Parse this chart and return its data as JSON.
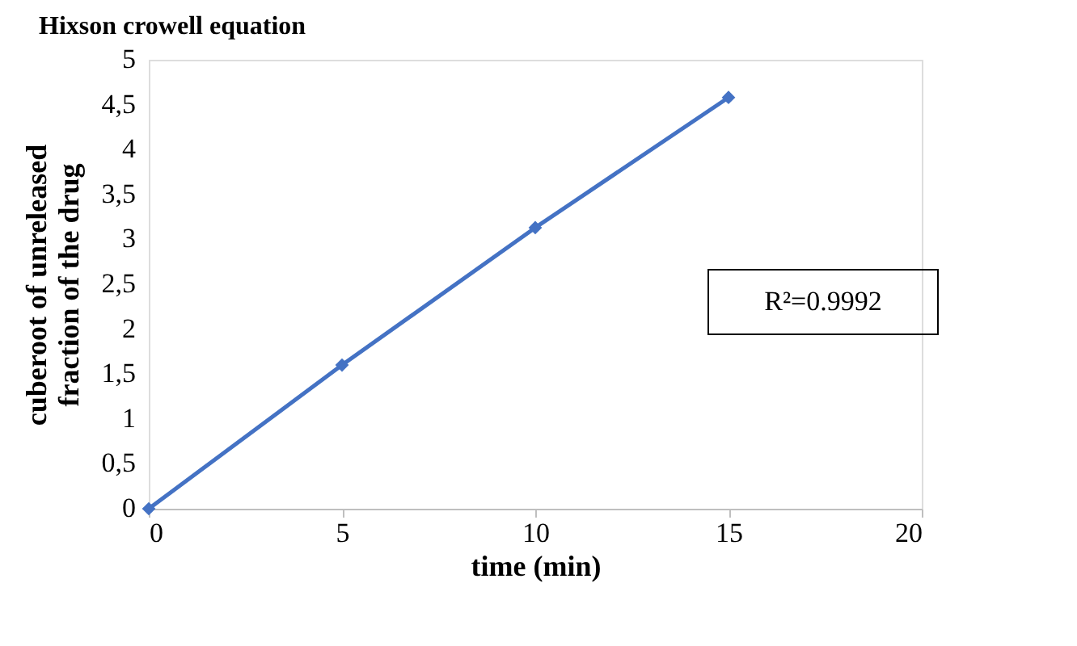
{
  "chart_data": {
    "type": "line",
    "title": "Hixson crowell equation",
    "xlabel": "time (min)",
    "ylabel": "cuberoot of unreleased\nfraction of the drug",
    "x": [
      0,
      5,
      10,
      15
    ],
    "series": [
      {
        "color": "#4472c4",
        "values": [
          0,
          1.6,
          3.13,
          4.58
        ]
      }
    ],
    "xlim": [
      0,
      20
    ],
    "xticks": [
      0,
      5,
      10,
      15,
      20
    ],
    "ylim": [
      0,
      5
    ],
    "yticks": [
      0,
      {
        "value": 0.5,
        "label": "0,5"
      },
      1,
      {
        "value": 1.5,
        "label": "1,5"
      },
      2,
      {
        "value": 2.5,
        "label": "2,5"
      },
      3,
      {
        "value": 3.5,
        "label": "3,5"
      },
      4,
      {
        "value": 4.5,
        "label": "4,5"
      },
      5
    ],
    "grid": false,
    "marker": "diamond",
    "line_style": "solid",
    "annotations": [
      "R²=0.9992"
    ]
  }
}
